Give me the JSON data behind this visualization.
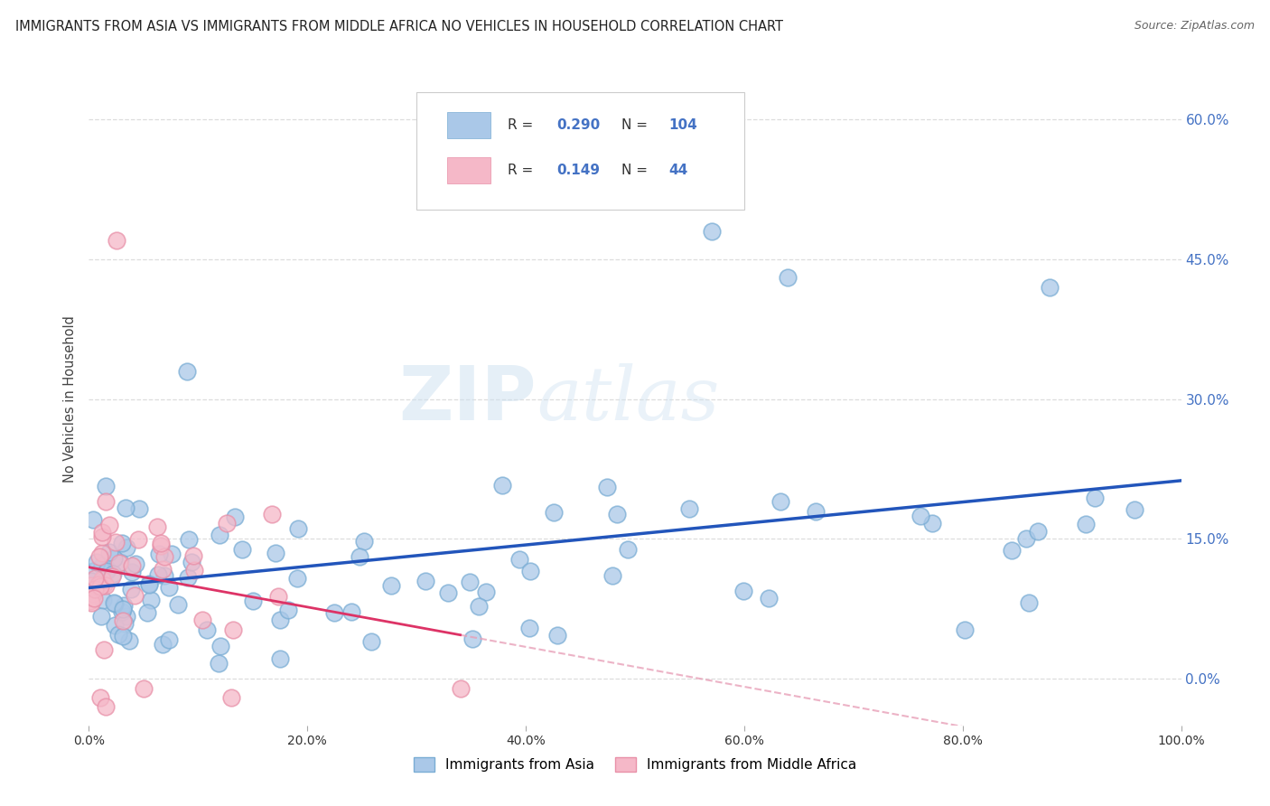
{
  "title": "IMMIGRANTS FROM ASIA VS IMMIGRANTS FROM MIDDLE AFRICA NO VEHICLES IN HOUSEHOLD CORRELATION CHART",
  "source": "Source: ZipAtlas.com",
  "ylabel": "No Vehicles in Household",
  "ytick_vals": [
    0,
    15,
    30,
    45,
    60
  ],
  "xlim": [
    0,
    100
  ],
  "ylim": [
    -5,
    65
  ],
  "legend_asia": "Immigrants from Asia",
  "legend_africa": "Immigrants from Middle Africa",
  "R_asia": "0.290",
  "N_asia": "104",
  "R_africa": "0.149",
  "N_africa": "44",
  "color_asia_face": "#aac8e8",
  "color_asia_edge": "#7aadd4",
  "color_africa_face": "#f5b8c8",
  "color_africa_edge": "#e890a8",
  "line_asia": "#2255bb",
  "line_africa_solid": "#dd3366",
  "line_africa_dash": "#e8a0b8",
  "background": "#ffffff",
  "grid_color": "#dddddd",
  "watermark_zip": "ZIP",
  "watermark_atlas": "atlas"
}
